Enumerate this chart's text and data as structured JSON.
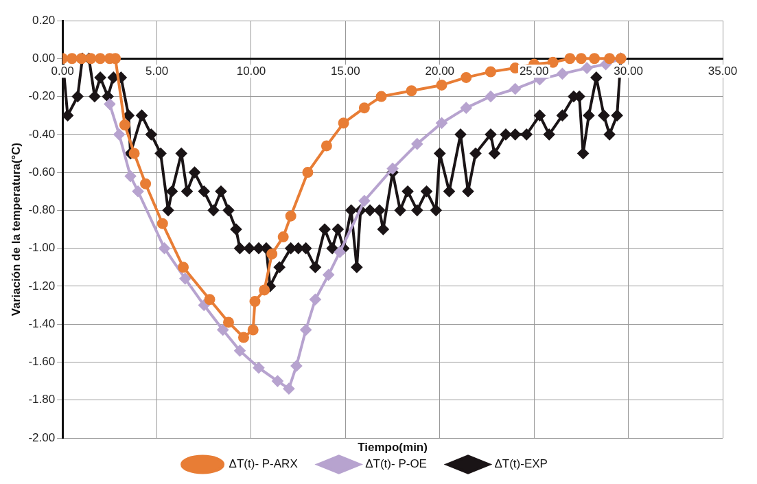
{
  "chart_data": {
    "type": "line",
    "xlabel": "Tiempo(min)",
    "ylabel": "Variación de la temperatura(°C)",
    "xlim": [
      0,
      35
    ],
    "xticks": [
      {
        "value": 0,
        "label": "0.00"
      },
      {
        "value": 5,
        "label": "5.00"
      },
      {
        "value": 10,
        "label": "10.00"
      },
      {
        "value": 15,
        "label": "15.00"
      },
      {
        "value": 20,
        "label": "20.00"
      },
      {
        "value": 25,
        "label": "25.00"
      },
      {
        "value": 30,
        "label": "30.00"
      },
      {
        "value": 35,
        "label": "35.00"
      }
    ],
    "ylim": [
      -2,
      0.2
    ],
    "yticks": [
      {
        "value": -2,
        "label": "-2.00"
      },
      {
        "value": -1.8,
        "label": "-1.80"
      },
      {
        "value": -1.6,
        "label": "-1.60"
      },
      {
        "value": -1.4,
        "label": "-1.40"
      },
      {
        "value": -1.2,
        "label": "-1.20"
      },
      {
        "value": -1,
        "label": "-1.00"
      },
      {
        "value": -0.8,
        "label": "-0.80"
      },
      {
        "value": -0.6,
        "label": "-0.60"
      },
      {
        "value": -0.4,
        "label": "-0.40"
      },
      {
        "value": -0.2,
        "label": "-0.20"
      },
      {
        "value": 0,
        "label": "0.00"
      },
      {
        "value": 0.2,
        "label": "0.20"
      }
    ],
    "grid": true,
    "legend": "bottom",
    "line_style": "solid",
    "series": [
      {
        "name": "ΔT(t)- P-ARX",
        "color": "#e87d35",
        "marker": "circle",
        "x": [
          0,
          0.5,
          1,
          1.5,
          2,
          2.5,
          2.8,
          3.3,
          3.8,
          4.4,
          5.3,
          6.4,
          7.8,
          8.8,
          9.6,
          10.1,
          10.2,
          10.7,
          11.1,
          11.7,
          12.1,
          13.0,
          14.0,
          14.9,
          16.0,
          16.9,
          18.5,
          20.1,
          21.4,
          22.7,
          24.0,
          25.0,
          26.0,
          26.9,
          27.5,
          28.2,
          29.0,
          29.6
        ],
        "values": [
          0,
          0,
          0,
          0,
          0,
          0,
          0,
          -0.35,
          -0.5,
          -0.66,
          -0.87,
          -1.1,
          -1.27,
          -1.39,
          -1.47,
          -1.43,
          -1.28,
          -1.22,
          -1.03,
          -0.94,
          -0.83,
          -0.6,
          -0.46,
          -0.34,
          -0.26,
          -0.2,
          -0.17,
          -0.14,
          -0.1,
          -0.07,
          -0.05,
          -0.03,
          -0.02,
          0,
          0,
          0,
          0,
          0
        ]
      },
      {
        "name": "ΔT(t)- P-OE",
        "color": "#b7a3cf",
        "marker": "diamond",
        "x": [
          2.5,
          3.0,
          3.6,
          4.0,
          5.4,
          6.5,
          7.5,
          8.5,
          9.4,
          10.4,
          11.4,
          12.0,
          12.4,
          12.9,
          13.4,
          14.1,
          14.7,
          16.0,
          17.5,
          18.8,
          20.1,
          21.4,
          22.7,
          24.0,
          25.3,
          26.5,
          27.8,
          28.8,
          29.6
        ],
        "values": [
          -0.24,
          -0.4,
          -0.62,
          -0.7,
          -1.0,
          -1.16,
          -1.3,
          -1.43,
          -1.54,
          -1.63,
          -1.7,
          -1.74,
          -1.62,
          -1.43,
          -1.27,
          -1.14,
          -1.02,
          -0.75,
          -0.58,
          -0.45,
          -0.34,
          -0.26,
          -0.2,
          -0.16,
          -0.11,
          -0.08,
          -0.05,
          -0.03,
          0
        ]
      },
      {
        "name": "ΔT(t)-EXP",
        "color": "#1a1416",
        "marker": "diamond",
        "x": [
          0,
          0.27,
          0.8,
          1.05,
          1.4,
          1.7,
          2.0,
          2.4,
          2.7,
          3.1,
          3.5,
          3.6,
          4.2,
          4.7,
          5.2,
          5.6,
          5.8,
          6.3,
          6.6,
          7.0,
          7.5,
          8.0,
          8.4,
          8.8,
          9.2,
          9.4,
          9.9,
          10.4,
          10.8,
          11.0,
          11.5,
          12.1,
          12.5,
          12.9,
          13.4,
          13.9,
          14.3,
          14.6,
          14.9,
          15.3,
          15.6,
          15.8,
          16.3,
          16.8,
          17.0,
          17.5,
          17.9,
          18.3,
          18.8,
          19.3,
          19.8,
          20.0,
          20.5,
          21.1,
          21.5,
          21.9,
          22.7,
          22.9,
          23.5,
          24.0,
          24.6,
          25.3,
          25.8,
          26.5,
          27.1,
          27.4,
          27.6,
          27.9,
          28.3,
          28.7,
          29.0,
          29.4,
          29.6
        ],
        "values": [
          0,
          -0.3,
          -0.2,
          0,
          0,
          -0.2,
          -0.1,
          -0.2,
          -0.1,
          -0.1,
          -0.3,
          -0.5,
          -0.3,
          -0.4,
          -0.5,
          -0.8,
          -0.7,
          -0.5,
          -0.7,
          -0.6,
          -0.7,
          -0.8,
          -0.7,
          -0.8,
          -0.9,
          -1.0,
          -1.0,
          -1.0,
          -1.0,
          -1.2,
          -1.1,
          -1.0,
          -1.0,
          -1.0,
          -1.1,
          -0.9,
          -1.0,
          -0.9,
          -1.0,
          -0.8,
          -1.1,
          -0.8,
          -0.8,
          -0.8,
          -0.9,
          -0.6,
          -0.8,
          -0.7,
          -0.8,
          -0.7,
          -0.8,
          -0.5,
          -0.7,
          -0.4,
          -0.7,
          -0.5,
          -0.4,
          -0.5,
          -0.4,
          -0.4,
          -0.4,
          -0.3,
          -0.4,
          -0.3,
          -0.2,
          -0.2,
          -0.5,
          -0.3,
          -0.1,
          -0.3,
          -0.4,
          -0.3,
          0
        ]
      }
    ]
  }
}
